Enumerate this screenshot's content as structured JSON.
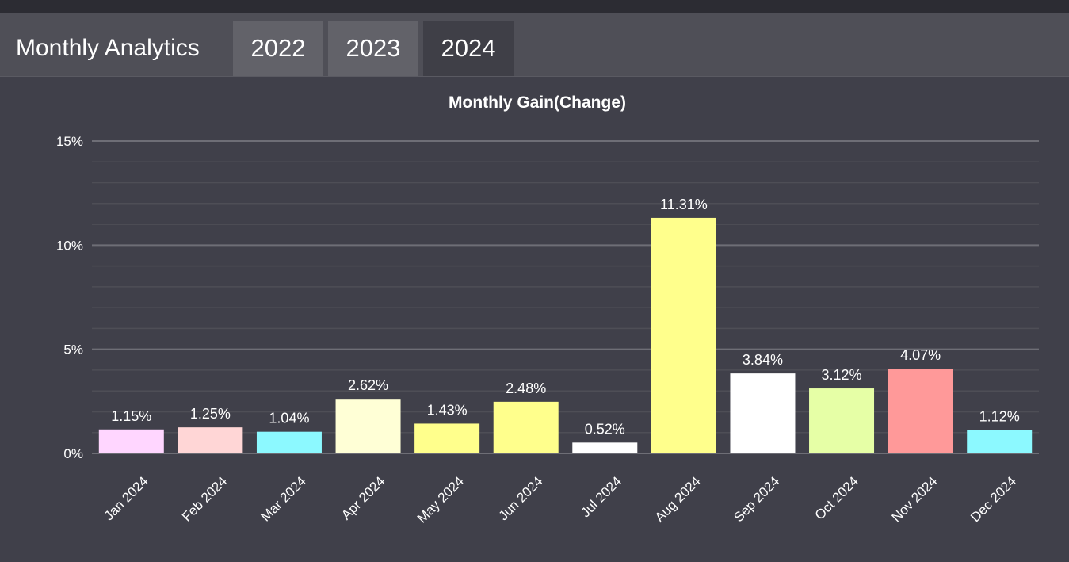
{
  "header": {
    "title": "Monthly Analytics",
    "tabs": [
      {
        "label": "2022",
        "active": false
      },
      {
        "label": "2023",
        "active": false
      },
      {
        "label": "2024",
        "active": true
      }
    ]
  },
  "chart_data": {
    "type": "bar",
    "title": "Monthly Gain(Change)",
    "xlabel": "",
    "ylabel": "",
    "categories": [
      "Jan 2024",
      "Feb 2024",
      "Mar 2024",
      "Apr 2024",
      "May 2024",
      "Jun 2024",
      "Jul 2024",
      "Aug 2024",
      "Sep 2024",
      "Oct 2024",
      "Nov 2024",
      "Dec 2024"
    ],
    "values": [
      1.15,
      1.25,
      1.04,
      2.62,
      1.43,
      2.48,
      0.52,
      11.31,
      3.84,
      3.12,
      4.07,
      1.12
    ],
    "value_labels": [
      "1.15%",
      "1.25%",
      "1.04%",
      "2.62%",
      "1.43%",
      "2.48%",
      "0.52%",
      "11.31%",
      "3.84%",
      "3.12%",
      "4.07%",
      "1.12%"
    ],
    "colors": [
      "#ffd6ff",
      "#ffd6d6",
      "#8cf9ff",
      "#ffffd6",
      "#ffff8c",
      "#ffff8c",
      "#ffffff",
      "#ffff8c",
      "#ffffff",
      "#e6ffa6",
      "#ff9999",
      "#8cf9ff"
    ],
    "ylim": [
      0,
      15
    ],
    "yticks": [
      0,
      5,
      10,
      15
    ],
    "ytick_labels": [
      "0%",
      "5%",
      "10%",
      "15%"
    ],
    "grid": true,
    "legend": "none"
  }
}
